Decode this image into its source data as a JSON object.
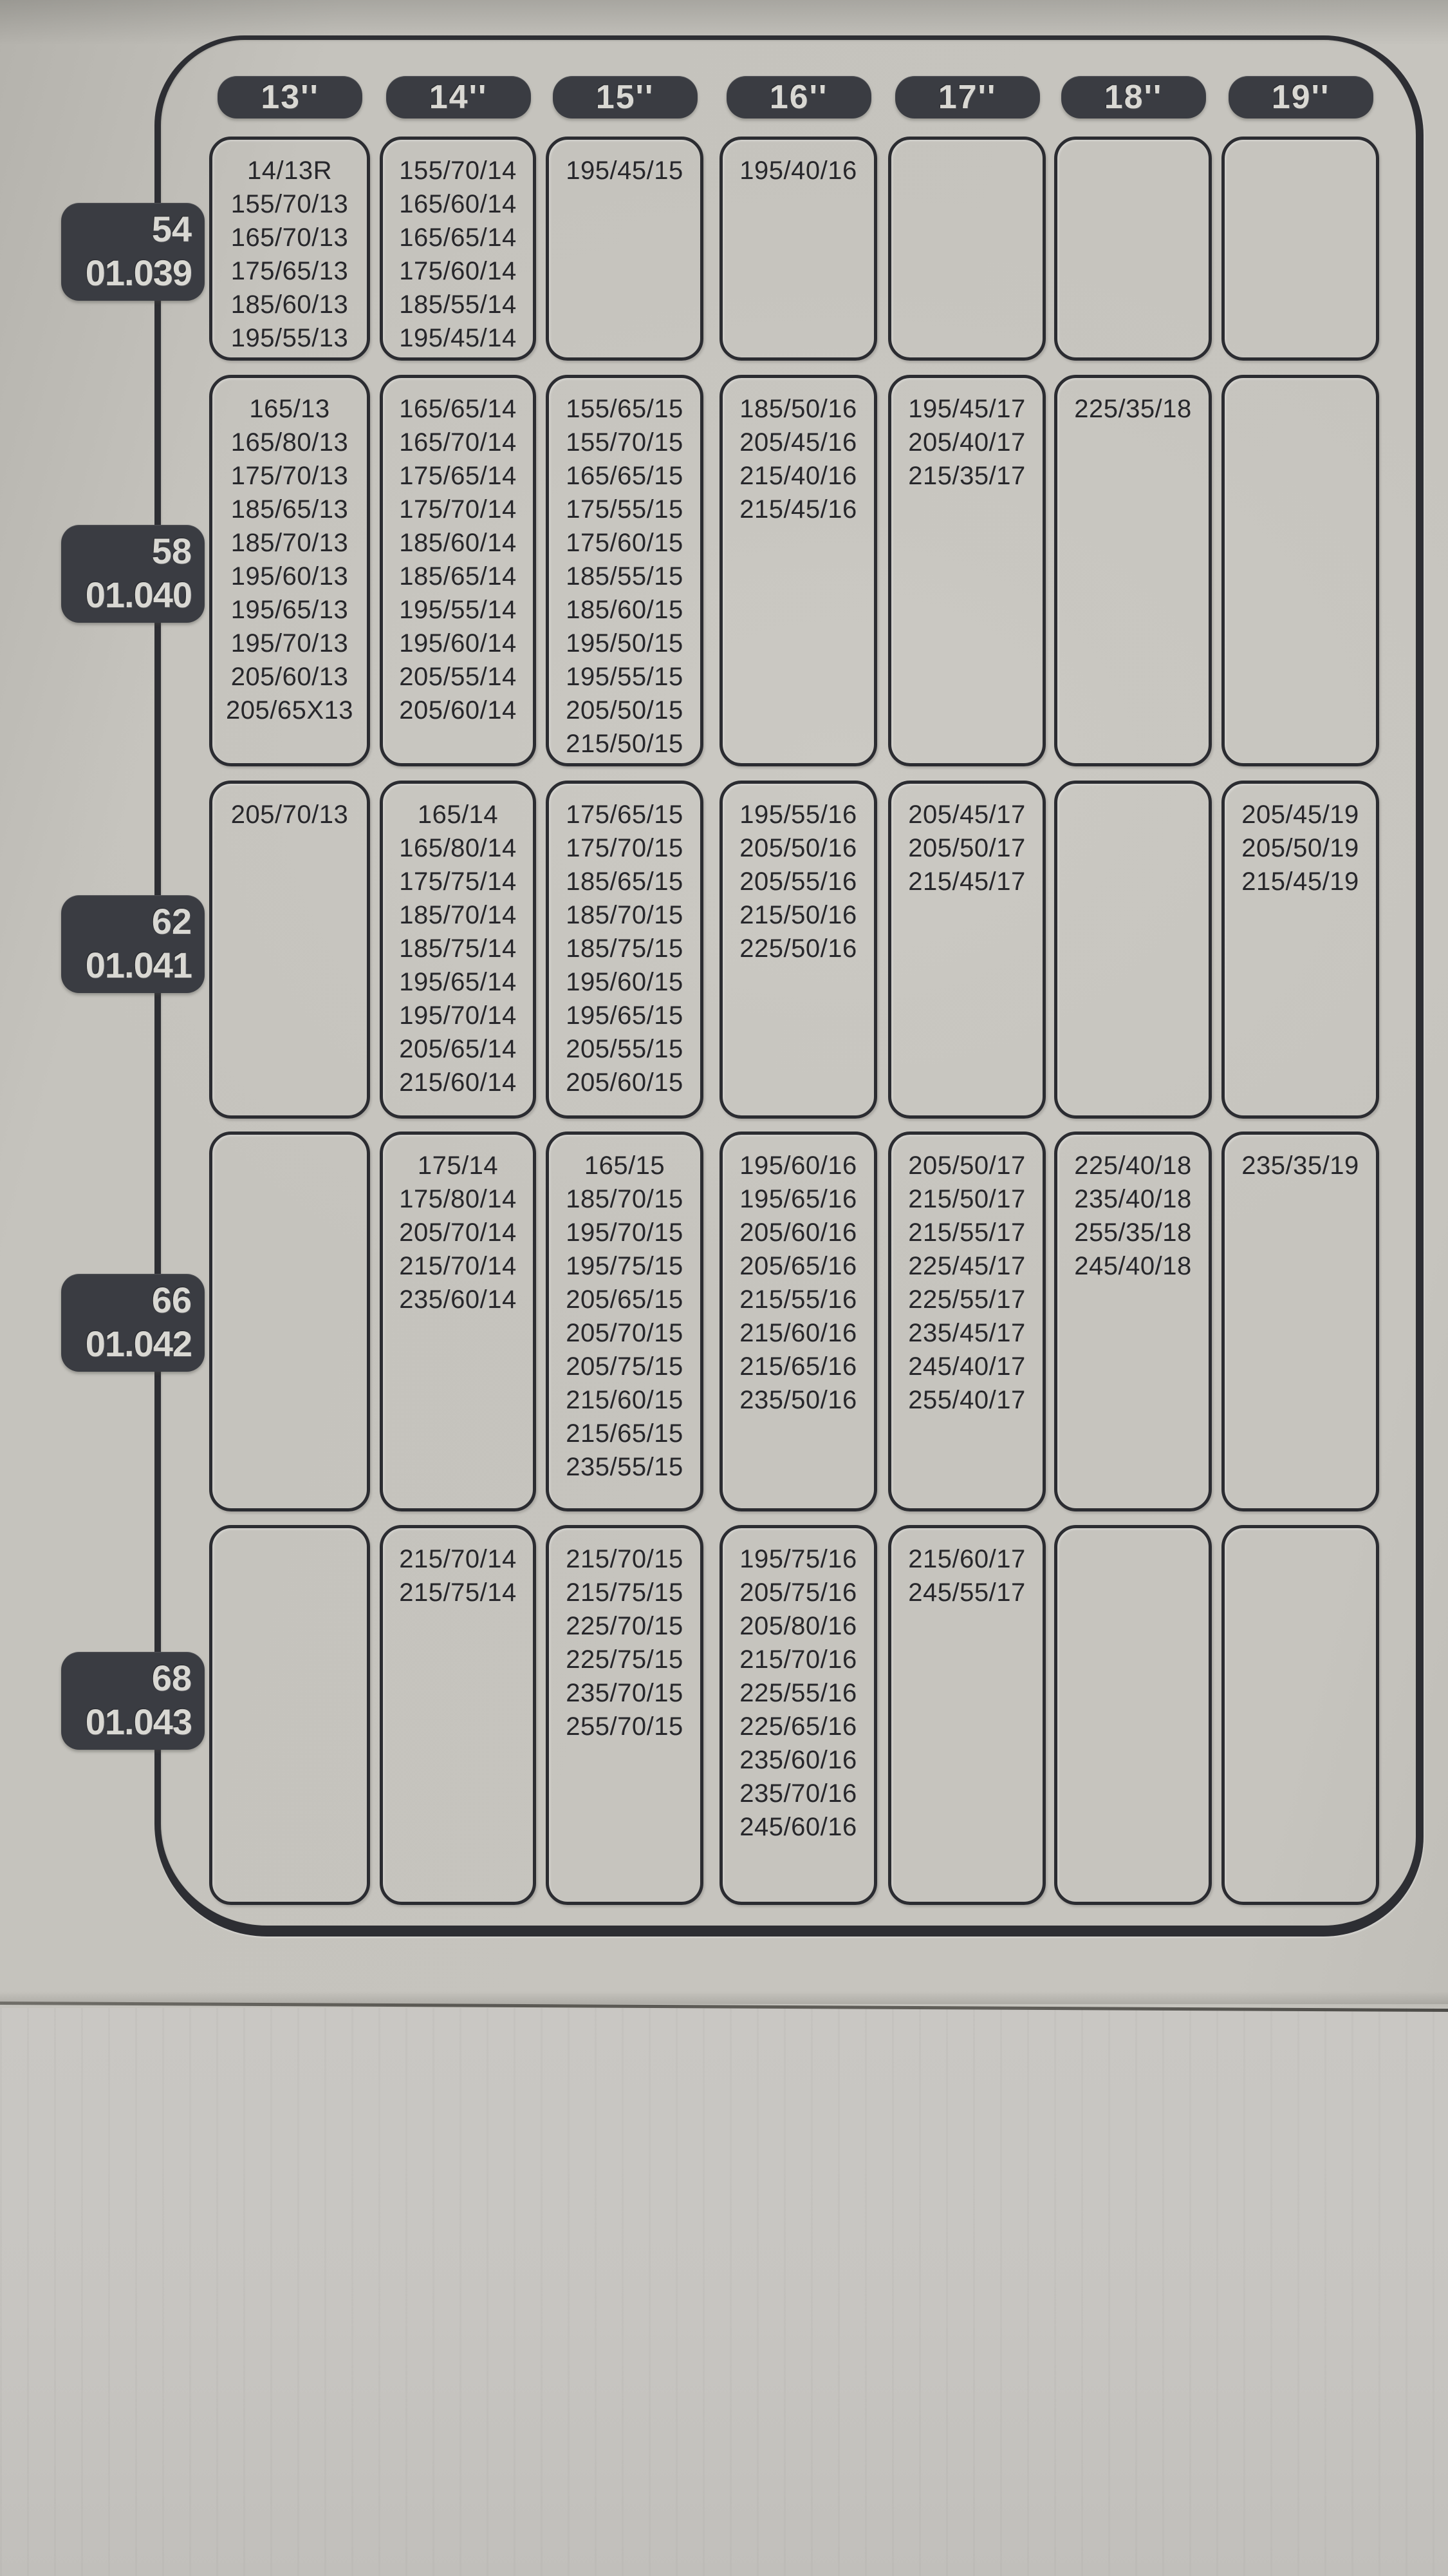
{
  "header": {
    "columns": [
      {
        "label": "13''"
      },
      {
        "label": "14''"
      },
      {
        "label": "15''"
      },
      {
        "label": "16''"
      },
      {
        "label": "17''"
      },
      {
        "label": "18''"
      },
      {
        "label": "19''"
      }
    ]
  },
  "rows": [
    {
      "size": "54",
      "code": "01.039",
      "cells": [
        [
          "14/13R",
          "155/70/13",
          "165/70/13",
          "175/65/13",
          "185/60/13",
          "195/55/13"
        ],
        [
          "155/70/14",
          "165/60/14",
          "165/65/14",
          "175/60/14",
          "185/55/14",
          "195/45/14"
        ],
        [
          "195/45/15"
        ],
        [
          "195/40/16"
        ],
        [],
        [],
        []
      ]
    },
    {
      "size": "58",
      "code": "01.040",
      "cells": [
        [
          "165/13",
          "165/80/13",
          "175/70/13",
          "185/65/13",
          "185/70/13",
          "195/60/13",
          "195/65/13",
          "195/70/13",
          "205/60/13",
          "205/65X13"
        ],
        [
          "165/65/14",
          "165/70/14",
          "175/65/14",
          "175/70/14",
          "185/60/14",
          "185/65/14",
          "195/55/14",
          "195/60/14",
          "205/55/14",
          "205/60/14"
        ],
        [
          "155/65/15",
          "155/70/15",
          "165/65/15",
          "175/55/15",
          "175/60/15",
          "185/55/15",
          "185/60/15",
          "195/50/15",
          "195/55/15",
          "205/50/15",
          "215/50/15"
        ],
        [
          "185/50/16",
          "205/45/16",
          "215/40/16",
          "215/45/16"
        ],
        [
          "195/45/17",
          "205/40/17",
          "215/35/17"
        ],
        [
          "225/35/18"
        ],
        []
      ]
    },
    {
      "size": "62",
      "code": "01.041",
      "cells": [
        [
          "205/70/13"
        ],
        [
          "165/14",
          "165/80/14",
          "175/75/14",
          "185/70/14",
          "185/75/14",
          "195/65/14",
          "195/70/14",
          "205/65/14",
          "215/60/14"
        ],
        [
          "175/65/15",
          "175/70/15",
          "185/65/15",
          "185/70/15",
          "185/75/15",
          "195/60/15",
          "195/65/15",
          "205/55/15",
          "205/60/15"
        ],
        [
          "195/55/16",
          "205/50/16",
          "205/55/16",
          "215/50/16",
          "225/50/16"
        ],
        [
          "205/45/17",
          "205/50/17",
          "215/45/17"
        ],
        [],
        [
          "205/45/19",
          "205/50/19",
          "215/45/19"
        ]
      ]
    },
    {
      "size": "66",
      "code": "01.042",
      "cells": [
        [],
        [
          "175/14",
          "175/80/14",
          "205/70/14",
          "215/70/14",
          "235/60/14"
        ],
        [
          "165/15",
          "185/70/15",
          "195/70/15",
          "195/75/15",
          "205/65/15",
          "205/70/15",
          "205/75/15",
          "215/60/15",
          "215/65/15",
          "235/55/15"
        ],
        [
          "195/60/16",
          "195/65/16",
          "205/60/16",
          "205/65/16",
          "215/55/16",
          "215/60/16",
          "215/65/16",
          "235/50/16"
        ],
        [
          "205/50/17",
          "215/50/17",
          "215/55/17",
          "225/45/17",
          "225/55/17",
          "235/45/17",
          "245/40/17",
          "255/40/17"
        ],
        [
          "225/40/18",
          "235/40/18",
          "255/35/18",
          "245/40/18"
        ],
        [
          "235/35/19"
        ]
      ]
    },
    {
      "size": "68",
      "code": "01.043",
      "cells": [
        [],
        [
          "215/70/14",
          "215/75/14"
        ],
        [
          "215/70/15",
          "215/75/15",
          "225/70/15",
          "225/75/15",
          "235/70/15",
          "255/70/15"
        ],
        [
          "195/75/16",
          "205/75/16",
          "205/80/16",
          "215/70/16",
          "225/55/16",
          "225/65/16",
          "235/60/16",
          "235/70/16",
          "245/60/16"
        ],
        [
          "215/60/17",
          "245/55/17"
        ],
        [],
        []
      ]
    }
  ],
  "colors": {
    "ink": "#27272b",
    "line": "#2b2c31",
    "pill_bg": "#3a3c42",
    "pill_text": "#d9d8d3",
    "paper": "#c6c4be"
  }
}
